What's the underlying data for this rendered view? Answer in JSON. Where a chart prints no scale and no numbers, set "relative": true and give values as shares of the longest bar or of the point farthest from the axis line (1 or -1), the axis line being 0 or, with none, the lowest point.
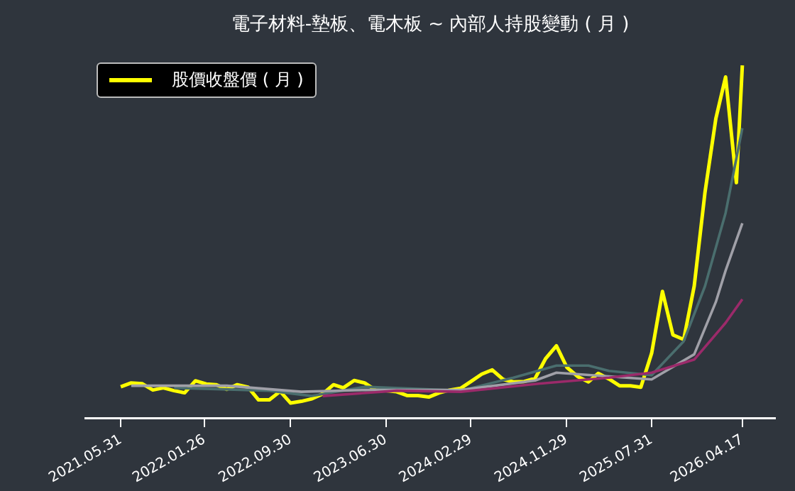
{
  "chart_data": {
    "type": "line",
    "title": "電子材料-墊板、電木板 ~ 內部人持股變動 ( 月 )",
    "relative": true,
    "legend": "top left",
    "grid": false,
    "marker": "none",
    "line_style": "solid",
    "x": [
      "2021-05-31",
      "2021-06-30",
      "2021-07-31",
      "2021-08-31",
      "2021-09-30",
      "2021-10-31",
      "2021-11-30",
      "2021-12-31",
      "2022-01-31",
      "2022-02-28",
      "2022-03-31",
      "2022-04-30",
      "2022-05-31",
      "2022-06-30",
      "2022-07-31",
      "2022-08-31",
      "2022-09-30",
      "2022-10-31",
      "2022-11-30",
      "2022-12-31",
      "2023-01-31",
      "2023-02-28",
      "2023-03-31",
      "2023-04-30",
      "2023-05-31",
      "2023-06-30",
      "2023-07-31",
      "2023-08-31",
      "2023-09-30",
      "2023-10-31",
      "2023-11-30",
      "2023-12-31",
      "2024-01-31",
      "2024-02-29",
      "2024-03-31",
      "2024-04-30",
      "2024-05-31",
      "2024-06-30",
      "2024-07-31",
      "2024-08-31",
      "2024-09-30",
      "2024-10-31",
      "2024-11-30",
      "2024-12-31",
      "2025-01-31",
      "2025-02-28",
      "2025-03-31",
      "2025-04-30",
      "2025-05-31",
      "2025-06-30",
      "2025-07-31",
      "2025-08-31",
      "2025-09-30",
      "2025-10-31",
      "2025-11-30",
      "2025-12-31",
      "2026-01-31",
      "2026-02-28",
      "2026-03-31",
      "2026-04-17"
    ],
    "xlim": [
      "2021-02-18",
      "2026-07-20"
    ],
    "xticks": [
      {
        "value": "2021-05-31",
        "label": "2021.05.31"
      },
      {
        "value": "2022-01-26",
        "label": "2022.01.26"
      },
      {
        "value": "2022-09-30",
        "label": "2022.09.30"
      },
      {
        "value": "2023-06-30",
        "label": "2023.06.30"
      },
      {
        "value": "2024-02-29",
        "label": "2024.02.29"
      },
      {
        "value": "2024-11-29",
        "label": "2024.11.29"
      },
      {
        "value": "2025-07-31",
        "label": "2025.07.31"
      },
      {
        "value": "2026-04-17",
        "label": "2026.04.17"
      }
    ],
    "series": [
      {
        "name": "股價收盤價 ( 月 )",
        "color": "#ffff00",
        "values": [
          0.09,
          0.101,
          0.099,
          0.081,
          0.087,
          0.079,
          0.073,
          0.107,
          0.098,
          0.096,
          0.083,
          0.096,
          0.089,
          0.053,
          0.053,
          0.077,
          0.044,
          0.049,
          0.056,
          0.07,
          0.096,
          0.087,
          0.108,
          0.101,
          0.081,
          0.079,
          0.076,
          0.065,
          0.065,
          0.061,
          0.073,
          0.081,
          0.086,
          0.105,
          0.126,
          0.138,
          0.111,
          0.104,
          0.105,
          0.114,
          0.17,
          0.206,
          0.145,
          0.119,
          0.104,
          0.128,
          0.112,
          0.093,
          0.093,
          0.089,
          0.185,
          0.36,
          0.237,
          0.224,
          0.375,
          0.641,
          0.849,
          0.967,
          0.668,
          1.0
        ]
      },
      {
        "color": "#4a6e6e",
        "x": [
          "2021-10-31",
          "2022-07-31",
          "2022-11-30",
          "2023-04-30",
          "2024-01-31",
          "2024-06-30",
          "2024-10-31",
          "2025-01-31",
          "2025-03-31",
          "2025-07-31",
          "2025-10-31",
          "2025-12-31",
          "2026-02-28",
          "2026-04-17"
        ],
        "values": [
          0.087,
          0.079,
          0.064,
          0.09,
          0.079,
          0.116,
          0.15,
          0.15,
          0.135,
          0.123,
          0.219,
          0.375,
          0.582,
          0.822
        ]
      },
      {
        "color": "#a0a0a8",
        "x": [
          "2021-06-30",
          "2022-03-31",
          "2022-10-31",
          "2023-04-30",
          "2024-01-31",
          "2024-08-31",
          "2024-10-31",
          "2025-07-31",
          "2025-11-30",
          "2026-01-31",
          "2026-02-28",
          "2026-04-17"
        ],
        "values": [
          0.093,
          0.093,
          0.076,
          0.081,
          0.081,
          0.108,
          0.13,
          0.111,
          0.182,
          0.33,
          0.419,
          0.553
        ]
      },
      {
        "color": "#9b2a6a",
        "x": [
          "2022-12-31",
          "2023-07-31",
          "2024-01-31",
          "2024-08-31",
          "2025-03-31",
          "2025-07-31",
          "2025-11-30",
          "2026-02-28",
          "2026-04-17"
        ],
        "values": [
          0.064,
          0.079,
          0.076,
          0.098,
          0.116,
          0.13,
          0.167,
          0.271,
          0.338
        ]
      }
    ]
  }
}
